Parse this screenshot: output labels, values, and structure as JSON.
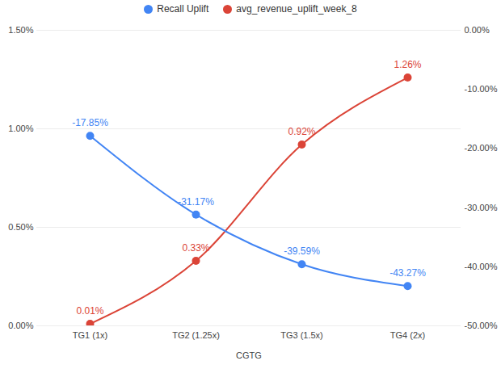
{
  "chart_data": {
    "type": "line",
    "x_label": "CGTG",
    "categories": [
      "TG1 (1x)",
      "TG2 (1.25x)",
      "TG3 (1.5x)",
      "TG4 (2x)"
    ],
    "series": [
      {
        "name": "Recall Uplift",
        "color": "#4285f4",
        "axis": "y2",
        "values": [
          -17.85,
          -31.17,
          -39.59,
          -43.27
        ],
        "value_labels": [
          "-17.85%",
          "-31.17%",
          "-39.59%",
          "-43.27%"
        ]
      },
      {
        "name": "avg_revenue_uplift_week_8",
        "color": "#db4437",
        "values": [
          0.01,
          0.33,
          0.92,
          1.26
        ],
        "value_labels": [
          "0.01%",
          "0.33%",
          "0.92%",
          "1.26%"
        ]
      }
    ],
    "ylim": [
      0,
      1.5
    ],
    "yticks": [
      {
        "value": 0,
        "label": "0.00%"
      },
      {
        "value": 0.5,
        "label": "0.50%"
      },
      {
        "value": 1,
        "label": "1.00%"
      },
      {
        "value": 1.5,
        "label": "1.50%"
      }
    ],
    "y2lim": [
      -50,
      0
    ],
    "y2ticks": [
      {
        "value": 0,
        "label": "0.00%"
      },
      {
        "value": -10,
        "label": "-10.00%"
      },
      {
        "value": -20,
        "label": "-20.00%"
      },
      {
        "value": -30,
        "label": "-30.00%"
      },
      {
        "value": -40,
        "label": "-40.00%"
      },
      {
        "value": -50,
        "label": "-50.00%"
      }
    ],
    "grid": true,
    "legend": "top",
    "data_labels": true,
    "marker": "circle",
    "line_style": "smooth"
  }
}
